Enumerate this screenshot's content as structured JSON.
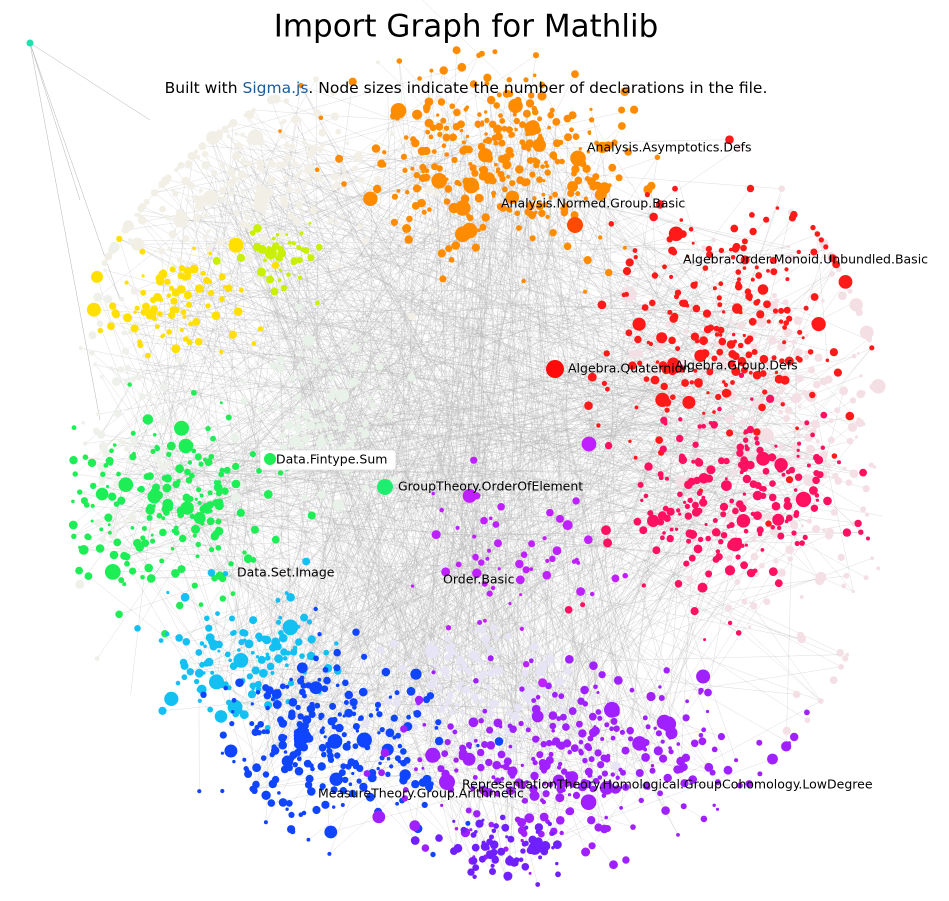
{
  "header": {
    "title": "Import Graph for Mathlib",
    "subtitle": {
      "before": "Built with ",
      "link": "Sigma.js",
      "after": ". Node sizes indicate the number of declarations in the file."
    }
  },
  "nodes": [
    {
      "label": "Analysis.Asymptotics.Defs"
    },
    {
      "label": "Analysis.Normed.Group.Basic"
    },
    {
      "label": "Algebra.Order.Monoid.Unbundled.Basic"
    },
    {
      "label": "Algebra.Quaternion"
    },
    {
      "label": "Algebra.Group.Defs"
    },
    {
      "label": "Data.Fintype.Sum"
    },
    {
      "label": "GroupTheory.OrderOfElement"
    },
    {
      "label": "Data.Set.Image"
    },
    {
      "label": "Order.Basic"
    },
    {
      "label": "RepresentationTheory.Homological.GroupCohomology.LowDegree"
    },
    {
      "label": "MeasureTheory.Group.Arithmetic"
    }
  ]
}
